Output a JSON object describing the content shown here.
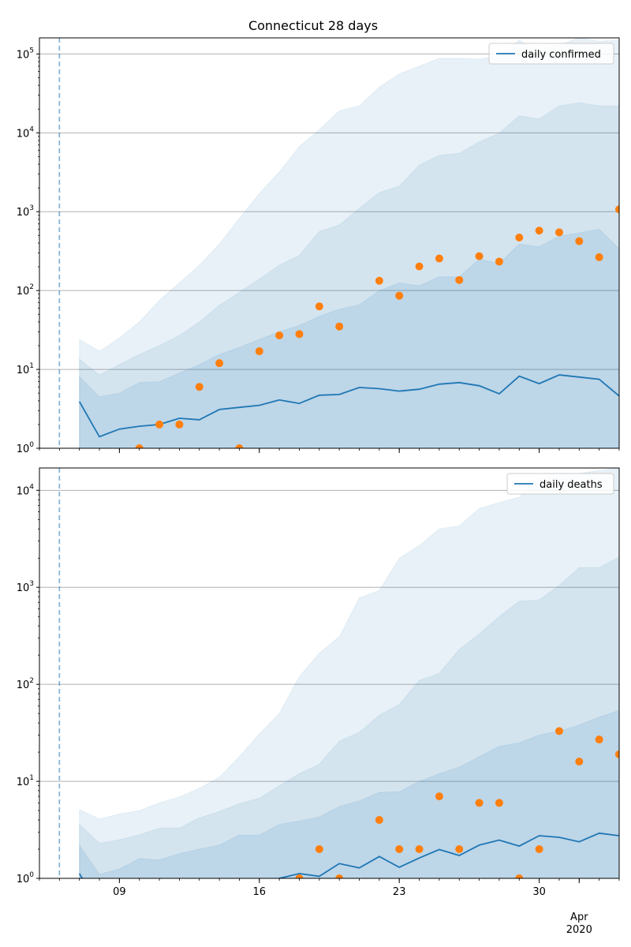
{
  "title": "Connecticut 28 days",
  "colors": {
    "line": "#1f77b4",
    "observed": "#ff7f0e",
    "band": "#1f77b4",
    "grid": "#b0b0b0"
  },
  "xaxis": {
    "start": "2020-03-05",
    "end": "2020-04-03",
    "major_ticks": [
      {
        "date": "2020-03-09",
        "label": "09"
      },
      {
        "date": "2020-03-16",
        "label": "16"
      },
      {
        "date": "2020-03-23",
        "label": "23"
      },
      {
        "date": "2020-03-30",
        "label": "30"
      }
    ],
    "month_tick": {
      "date": "2020-04-01",
      "label1": "Apr",
      "label2": "2020"
    }
  },
  "chart_data": [
    {
      "type": "line",
      "legend": "daily confirmed",
      "legend_position": "top-right",
      "yscale": "log",
      "ylim": [
        1,
        160000
      ],
      "ytick_labels": [
        {
          "value": 1,
          "base": "10",
          "exp": "0"
        },
        {
          "value": 10,
          "base": "10",
          "exp": "1"
        },
        {
          "value": 100,
          "base": "10",
          "exp": "2"
        },
        {
          "value": 1000,
          "base": "10",
          "exp": "3"
        },
        {
          "value": 10000,
          "base": "10",
          "exp": "4"
        },
        {
          "value": 100000,
          "base": "10",
          "exp": "5"
        }
      ],
      "grid": true,
      "vline_date": "2020-03-06",
      "dates": [
        "2020-03-07",
        "2020-03-08",
        "2020-03-09",
        "2020-03-10",
        "2020-03-11",
        "2020-03-12",
        "2020-03-13",
        "2020-03-14",
        "2020-03-15",
        "2020-03-16",
        "2020-03-17",
        "2020-03-18",
        "2020-03-19",
        "2020-03-20",
        "2020-03-21",
        "2020-03-22",
        "2020-03-23",
        "2020-03-24",
        "2020-03-25",
        "2020-03-26",
        "2020-03-27",
        "2020-03-28",
        "2020-03-29",
        "2020-03-30",
        "2020-03-31",
        "2020-04-01",
        "2020-04-02",
        "2020-04-03"
      ],
      "median": [
        3.9,
        1.4,
        1.75,
        1.9,
        2.0,
        2.4,
        2.3,
        3.1,
        3.3,
        3.5,
        4.1,
        3.7,
        4.7,
        4.8,
        5.9,
        5.7,
        5.3,
        5.6,
        6.5,
        6.8,
        6.2,
        4.9,
        8.2,
        6.6,
        8.5,
        8.0,
        7.5,
        4.6
      ],
      "bands": [
        {
          "lower": [
            1,
            1,
            1,
            1,
            1,
            1,
            1,
            1,
            1,
            1,
            1,
            1,
            1,
            1,
            1,
            1,
            1,
            1,
            1,
            1,
            1,
            1,
            1,
            1,
            1,
            1,
            1,
            1
          ],
          "upper": [
            8.1,
            4.5,
            5.0,
            6.8,
            7.0,
            9.0,
            11.5,
            15.5,
            19,
            24,
            30,
            36,
            47,
            58,
            66,
            100,
            125,
            115,
            150,
            150,
            250,
            220,
            390,
            360,
            490,
            540,
            600,
            340
          ]
        },
        {
          "lower": [
            1,
            1,
            1,
            1,
            1,
            1,
            1,
            1,
            1,
            1,
            1,
            1,
            1,
            1,
            1,
            1,
            1,
            1,
            1,
            1,
            1,
            1,
            1,
            1,
            1,
            1,
            1,
            1
          ],
          "upper": [
            13.5,
            8.5,
            11.5,
            15.5,
            20,
            27,
            40,
            65,
            95,
            140,
            210,
            280,
            560,
            680,
            1100,
            1750,
            2100,
            3900,
            5200,
            5500,
            7700,
            9900,
            16500,
            15000,
            22000,
            24000,
            22000,
            22000
          ]
        },
        {
          "lower": [
            1,
            1,
            1,
            1,
            1,
            1,
            1,
            1,
            1,
            1,
            1,
            1,
            1,
            1,
            1,
            1,
            1,
            1,
            1,
            1,
            1,
            1,
            1,
            1,
            1,
            1,
            1,
            1
          ],
          "upper": [
            24,
            17,
            25,
            40,
            75,
            125,
            210,
            390,
            820,
            1700,
            3200,
            6700,
            11000,
            19000,
            22000,
            38000,
            56000,
            70000,
            88000,
            88000,
            86000,
            95000,
            150000,
            110000,
            130000,
            160000,
            145000,
            150000
          ]
        }
      ],
      "observed": [
        {
          "date": "2020-03-10",
          "value": 1
        },
        {
          "date": "2020-03-11",
          "value": 2
        },
        {
          "date": "2020-03-12",
          "value": 2
        },
        {
          "date": "2020-03-13",
          "value": 6
        },
        {
          "date": "2020-03-14",
          "value": 12
        },
        {
          "date": "2020-03-15",
          "value": 1
        },
        {
          "date": "2020-03-16",
          "value": 17
        },
        {
          "date": "2020-03-17",
          "value": 27
        },
        {
          "date": "2020-03-18",
          "value": 28
        },
        {
          "date": "2020-03-19",
          "value": 63
        },
        {
          "date": "2020-03-20",
          "value": 35
        },
        {
          "date": "2020-03-22",
          "value": 133
        },
        {
          "date": "2020-03-23",
          "value": 86
        },
        {
          "date": "2020-03-24",
          "value": 202
        },
        {
          "date": "2020-03-25",
          "value": 255
        },
        {
          "date": "2020-03-26",
          "value": 136
        },
        {
          "date": "2020-03-27",
          "value": 273
        },
        {
          "date": "2020-03-28",
          "value": 233
        },
        {
          "date": "2020-03-29",
          "value": 470
        },
        {
          "date": "2020-03-30",
          "value": 575
        },
        {
          "date": "2020-03-31",
          "value": 547
        },
        {
          "date": "2020-04-01",
          "value": 423
        },
        {
          "date": "2020-04-02",
          "value": 265
        },
        {
          "date": "2020-04-03",
          "value": 1070
        }
      ]
    },
    {
      "type": "line",
      "legend": "daily deaths",
      "legend_position": "top-right",
      "yscale": "log",
      "ylim": [
        1,
        17000
      ],
      "ytick_labels": [
        {
          "value": 1,
          "base": "10",
          "exp": "0"
        },
        {
          "value": 10,
          "base": "10",
          "exp": "1"
        },
        {
          "value": 100,
          "base": "10",
          "exp": "2"
        },
        {
          "value": 1000,
          "base": "10",
          "exp": "3"
        },
        {
          "value": 10000,
          "base": "10",
          "exp": "4"
        }
      ],
      "grid": true,
      "vline_date": "2020-03-06",
      "dates": [
        "2020-03-07",
        "2020-03-08",
        "2020-03-09",
        "2020-03-10",
        "2020-03-11",
        "2020-03-12",
        "2020-03-13",
        "2020-03-14",
        "2020-03-15",
        "2020-03-16",
        "2020-03-17",
        "2020-03-18",
        "2020-03-19",
        "2020-03-20",
        "2020-03-21",
        "2020-03-22",
        "2020-03-23",
        "2020-03-24",
        "2020-03-25",
        "2020-03-26",
        "2020-03-27",
        "2020-03-28",
        "2020-03-29",
        "2020-03-30",
        "2020-03-31",
        "2020-04-01",
        "2020-04-02",
        "2020-04-03"
      ],
      "median": [
        1.12,
        0.5,
        0.45,
        0.45,
        0.5,
        0.55,
        0.6,
        0.65,
        0.75,
        0.85,
        1.0,
        1.12,
        1.05,
        1.42,
        1.28,
        1.68,
        1.3,
        1.62,
        1.98,
        1.72,
        2.2,
        2.48,
        2.15,
        2.75,
        2.65,
        2.38,
        2.92,
        2.75
      ],
      "bands": [
        {
          "lower": [
            1,
            1,
            1,
            1,
            1,
            1,
            1,
            1,
            1,
            1,
            1,
            1,
            1,
            1,
            1,
            1,
            1,
            1,
            1,
            1,
            1,
            1,
            1,
            1,
            1,
            1,
            1,
            1
          ],
          "upper": [
            2.2,
            1.1,
            1.25,
            1.6,
            1.55,
            1.8,
            2.0,
            2.2,
            2.8,
            2.8,
            3.6,
            3.9,
            4.3,
            5.5,
            6.3,
            7.7,
            7.8,
            10,
            12,
            14,
            18,
            23,
            25,
            30,
            33,
            38,
            46,
            54
          ]
        },
        {
          "lower": [
            1,
            1,
            1,
            1,
            1,
            1,
            1,
            1,
            1,
            1,
            1,
            1,
            1,
            1,
            1,
            1,
            1,
            1,
            1,
            1,
            1,
            1,
            1,
            1,
            1,
            1,
            1,
            1
          ],
          "upper": [
            3.6,
            2.3,
            2.5,
            2.8,
            3.3,
            3.3,
            4.2,
            4.9,
            5.9,
            6.7,
            9,
            12,
            15,
            26,
            32,
            48,
            62,
            110,
            130,
            230,
            330,
            500,
            720,
            740,
            1050,
            1600,
            1600,
            2050
          ]
        },
        {
          "lower": [
            1,
            1,
            1,
            1,
            1,
            1,
            1,
            1,
            1,
            1,
            1,
            1,
            1,
            1,
            1,
            1,
            1,
            1,
            1,
            1,
            1,
            1,
            1,
            1,
            1,
            1,
            1,
            1
          ],
          "upper": [
            5.1,
            4.1,
            4.6,
            5,
            6,
            6.9,
            8.5,
            11,
            18,
            31,
            50,
            120,
            210,
            310,
            780,
            930,
            2000,
            2700,
            4000,
            4300,
            6500,
            7500,
            8500,
            13000,
            14500,
            15000,
            16000,
            17000
          ]
        }
      ],
      "observed": [
        {
          "date": "2020-03-18",
          "value": 1
        },
        {
          "date": "2020-03-19",
          "value": 2
        },
        {
          "date": "2020-03-20",
          "value": 1
        },
        {
          "date": "2020-03-22",
          "value": 4
        },
        {
          "date": "2020-03-23",
          "value": 2
        },
        {
          "date": "2020-03-24",
          "value": 2
        },
        {
          "date": "2020-03-25",
          "value": 7
        },
        {
          "date": "2020-03-26",
          "value": 2
        },
        {
          "date": "2020-03-27",
          "value": 6
        },
        {
          "date": "2020-03-28",
          "value": 6
        },
        {
          "date": "2020-03-29",
          "value": 1
        },
        {
          "date": "2020-03-30",
          "value": 2
        },
        {
          "date": "2020-03-31",
          "value": 33
        },
        {
          "date": "2020-04-01",
          "value": 16
        },
        {
          "date": "2020-04-02",
          "value": 27
        },
        {
          "date": "2020-04-03",
          "value": 19
        }
      ]
    }
  ]
}
